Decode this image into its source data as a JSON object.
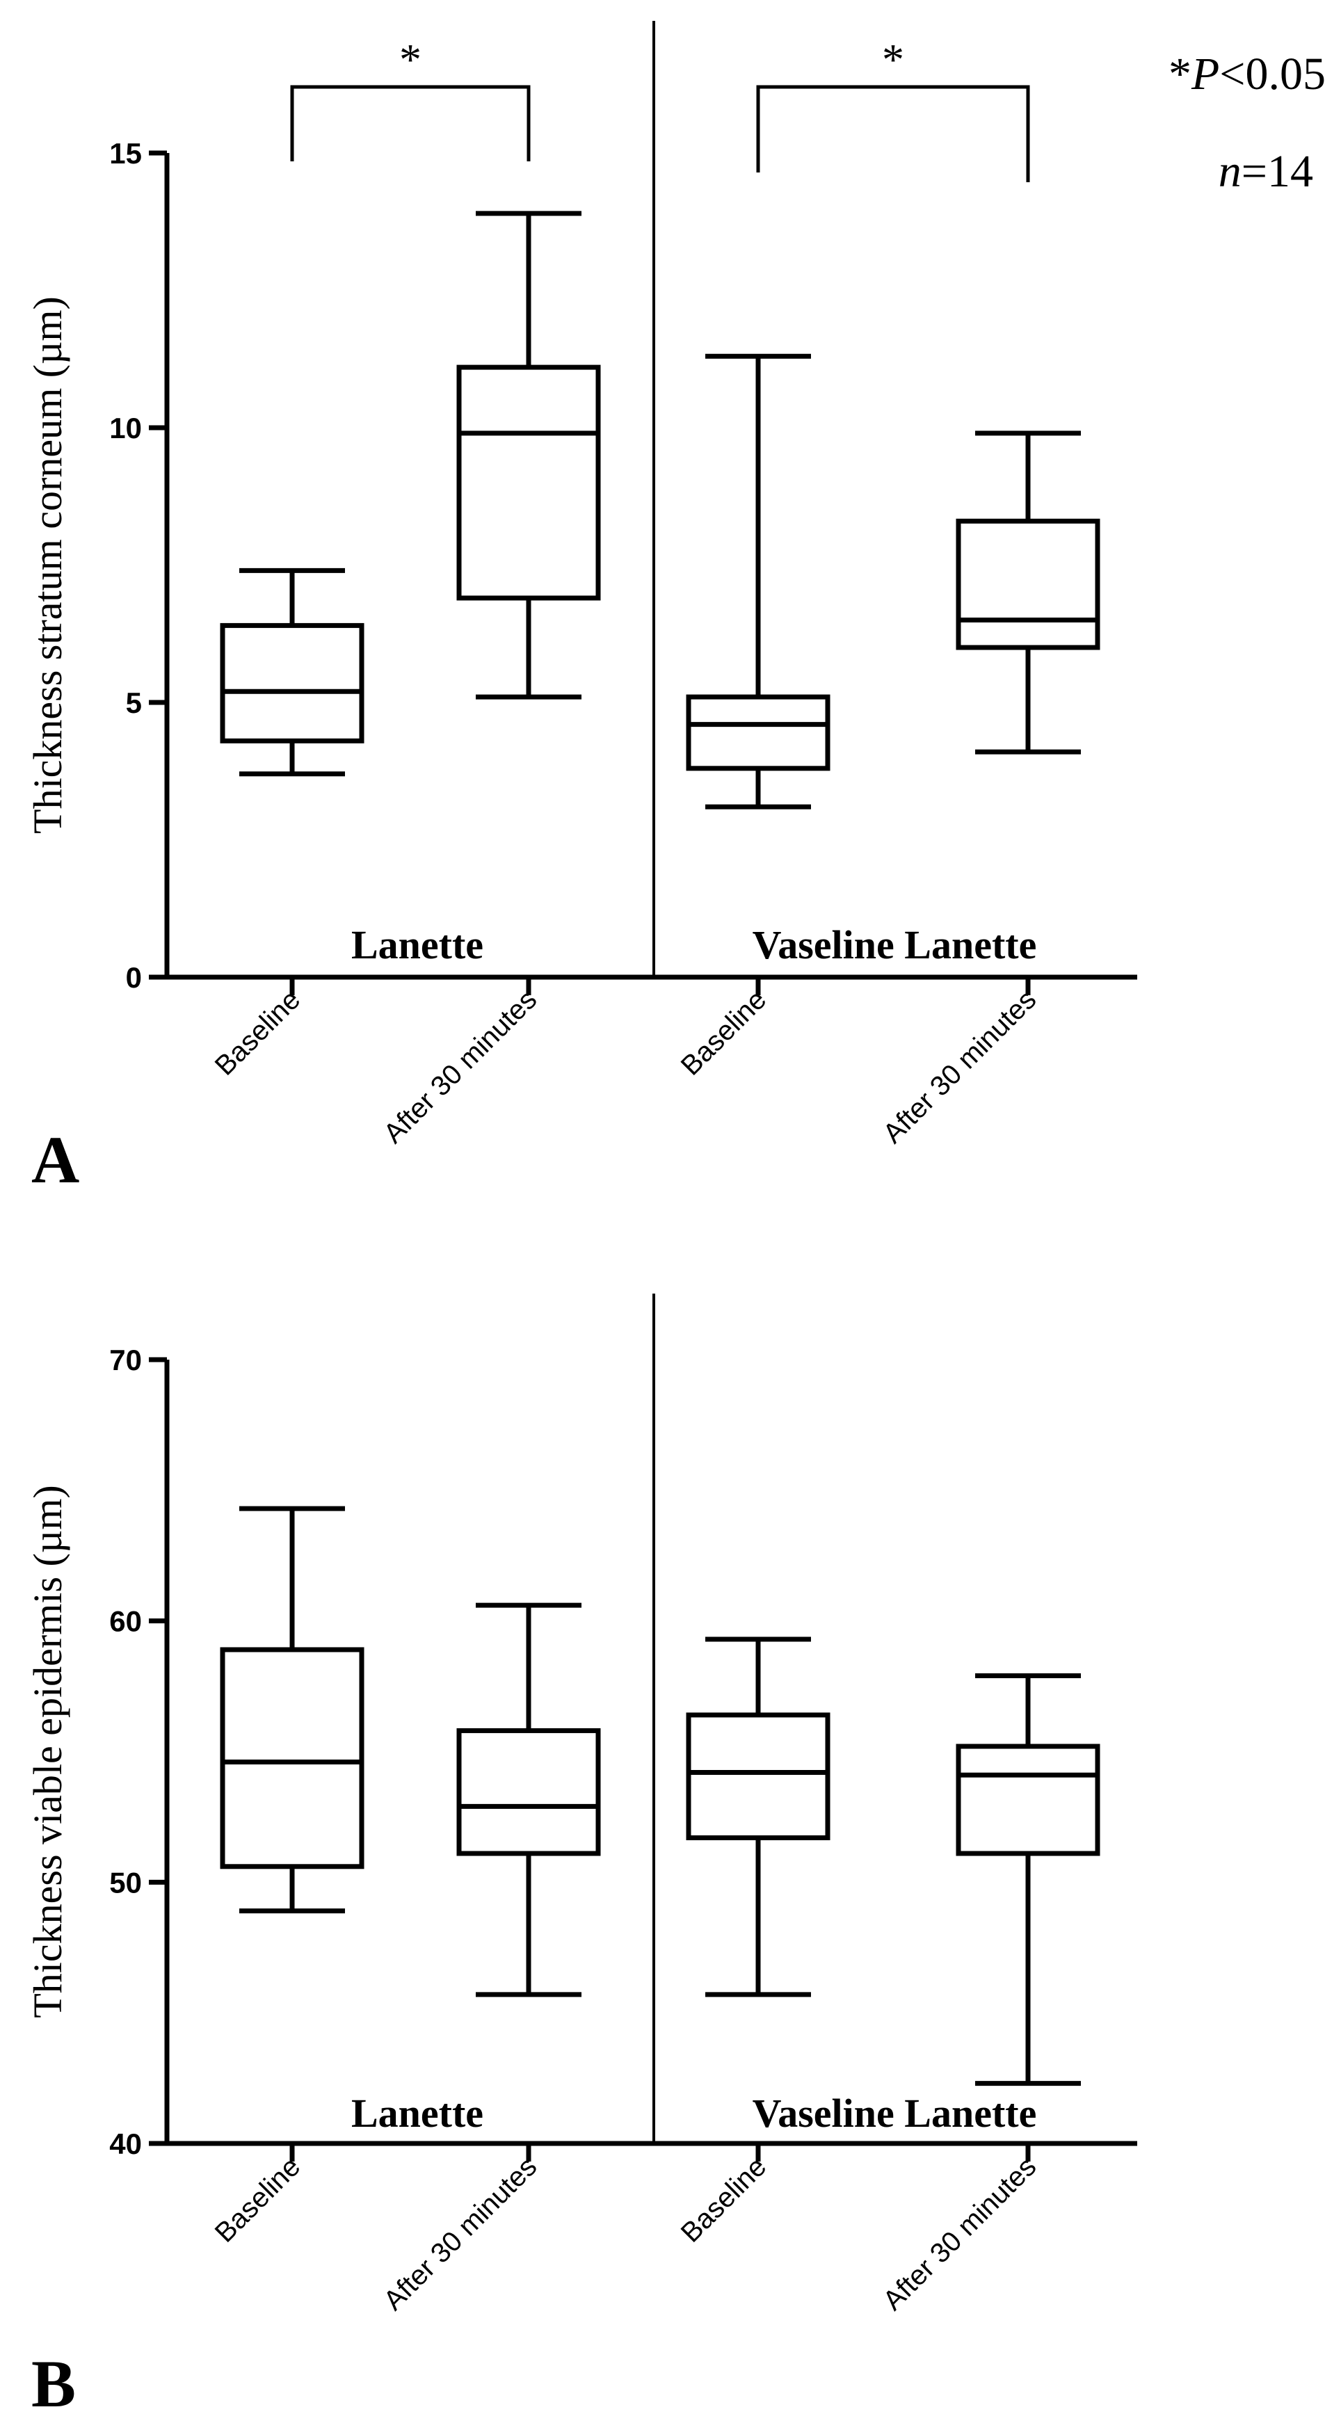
{
  "chart_data": [
    {
      "panel": "A",
      "type": "boxplot",
      "ylabel": "Thickness stratum corneum (µm)",
      "ylim": [
        0,
        15
      ],
      "yticks": [
        0,
        5,
        10,
        15
      ],
      "categories": [
        "Baseline",
        "After 30 minutes",
        "Baseline",
        "After 30 minutes"
      ],
      "groups": [
        {
          "label": "Lanette",
          "categories": [
            0,
            1
          ]
        },
        {
          "label": "Vaseline  Lanette",
          "categories": [
            2,
            3
          ]
        }
      ],
      "boxes": [
        {
          "min": 3.7,
          "q1": 4.3,
          "median": 5.2,
          "q3": 6.4,
          "max": 7.4
        },
        {
          "min": 5.1,
          "q1": 6.9,
          "median": 9.9,
          "q3": 11.1,
          "max": 13.9
        },
        {
          "min": 3.1,
          "q1": 3.8,
          "median": 4.6,
          "q3": 5.1,
          "max": 11.3
        },
        {
          "min": 4.1,
          "q1": 6.0,
          "median": 6.5,
          "q3": 8.3,
          "max": 9.9
        }
      ],
      "significance": [
        {
          "from": 0,
          "to": 1,
          "label": "*"
        },
        {
          "from": 2,
          "to": 3,
          "label": "*"
        }
      ],
      "annotation": {
        "p_star": "*",
        "p_symbol": "P",
        "p_rest": "<0.05",
        "n_symbol": "n",
        "n_rest": "=14"
      }
    },
    {
      "panel": "B",
      "type": "boxplot",
      "ylabel": "Thickness viable epidermis (µm)",
      "ylim": [
        40,
        70
      ],
      "yticks": [
        40,
        50,
        60,
        70
      ],
      "categories": [
        "Baseline",
        "After 30 minutes",
        "Baseline",
        "After 30 minutes"
      ],
      "groups": [
        {
          "label": "Lanette",
          "categories": [
            0,
            1
          ]
        },
        {
          "label": "Vaseline  Lanette",
          "categories": [
            2,
            3
          ]
        }
      ],
      "boxes": [
        {
          "min": 48.9,
          "q1": 50.6,
          "median": 54.6,
          "q3": 58.9,
          "max": 64.3
        },
        {
          "min": 45.7,
          "q1": 51.1,
          "median": 52.9,
          "q3": 55.8,
          "max": 60.6
        },
        {
          "min": 45.7,
          "q1": 51.7,
          "median": 54.2,
          "q3": 56.4,
          "max": 59.3
        },
        {
          "min": 42.3,
          "q1": 51.1,
          "median": 54.1,
          "q3": 55.2,
          "max": 57.9
        }
      ],
      "significance": []
    }
  ]
}
